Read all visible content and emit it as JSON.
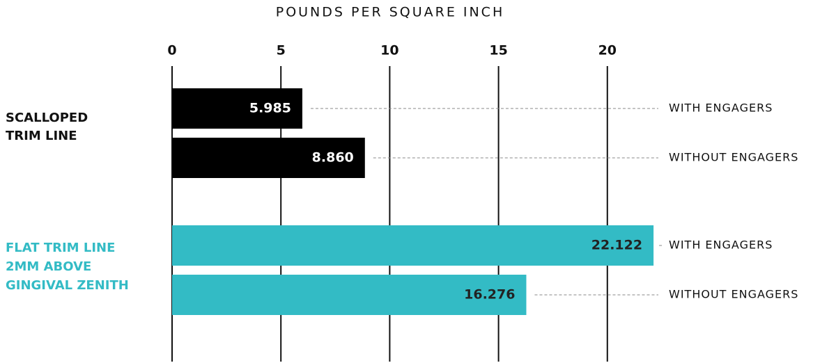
{
  "chart_data": {
    "type": "bar",
    "orientation": "horizontal",
    "title": "POUNDS PER SQUARE INCH",
    "categories": [
      [
        "SCALLOPED",
        "TRIM LINE"
      ],
      [
        "FLAT TRIM LINE",
        "2MM ABOVE",
        "GINGIVAL ZENITH"
      ]
    ],
    "category_colors": [
      "#000000",
      "#33bbc5"
    ],
    "value_label_colors": [
      "#ffffff",
      "#222222"
    ],
    "series": [
      {
        "name": "WITH ENGAGERS",
        "values": [
          5.985,
          22.122
        ],
        "value_labels": [
          "5.985",
          "22.122"
        ]
      },
      {
        "name": "WITHOUT ENGAGERS",
        "values": [
          8.86,
          16.276
        ],
        "value_labels": [
          "8.860",
          "16.276"
        ]
      }
    ],
    "xlim": [
      0,
      25
    ],
    "xticks": [
      0,
      5,
      10,
      15,
      20
    ],
    "grid": true
  }
}
